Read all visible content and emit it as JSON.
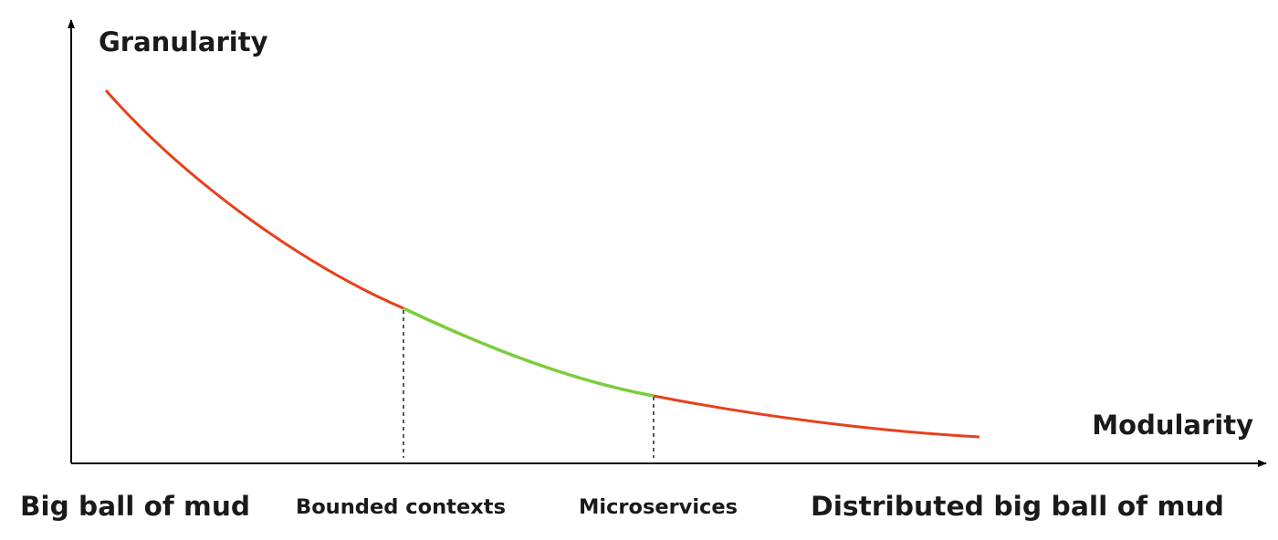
{
  "y_axis_label": "Granularity",
  "x_axis_label": "Modularity",
  "stages": [
    "Big ball of mud",
    "Bounded contexts",
    "Microservices",
    "Distributed big ball of mud"
  ]
}
